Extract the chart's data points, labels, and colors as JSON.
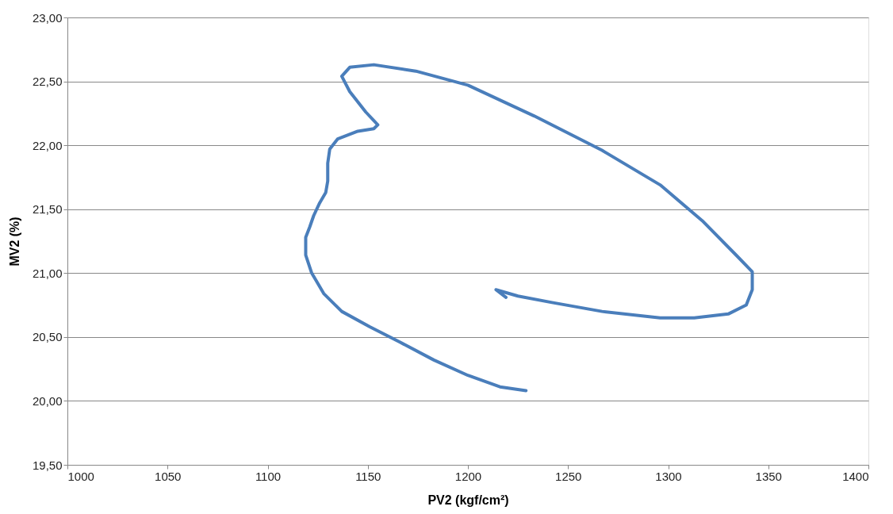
{
  "chart_data": {
    "type": "line",
    "xlabel": "PV2 (kgf/cm²)",
    "ylabel": "MV2 (%)",
    "x": [
      1229,
      1216,
      1200,
      1183,
      1166,
      1151,
      1137,
      1128,
      1122,
      1119,
      1119,
      1121,
      1123,
      1126,
      1129,
      1130,
      1130,
      1131,
      1135,
      1145,
      1153,
      1155,
      1149,
      1141,
      1137,
      1141,
      1153,
      1174,
      1200,
      1233,
      1267,
      1296,
      1317,
      1334,
      1342,
      1342,
      1339,
      1330,
      1313,
      1296,
      1267,
      1242,
      1225,
      1214,
      1219
    ],
    "series": [
      {
        "color": "#4a7ebb",
        "values": [
          20.08,
          20.11,
          20.2,
          20.32,
          20.46,
          20.58,
          20.7,
          20.84,
          21.0,
          21.14,
          21.28,
          21.36,
          21.45,
          21.55,
          21.63,
          21.72,
          21.86,
          21.97,
          22.05,
          22.11,
          22.13,
          22.16,
          22.26,
          22.42,
          22.54,
          22.61,
          22.63,
          22.58,
          22.47,
          22.23,
          21.96,
          21.69,
          21.41,
          21.14,
          21.01,
          20.87,
          20.75,
          20.68,
          20.65,
          20.65,
          20.7,
          20.77,
          20.82,
          20.87,
          20.81
        ]
      }
    ],
    "xlim": [
      1000,
      1400
    ],
    "xticks": [
      1000,
      1050,
      1100,
      1150,
      1200,
      1250,
      1300,
      1350,
      1400
    ],
    "ylim": [
      19.5,
      23.0
    ],
    "yticks": [
      {
        "value": 19.5,
        "label": "19,50"
      },
      {
        "value": 20.0,
        "label": "20,00"
      },
      {
        "value": 20.5,
        "label": "20,50"
      },
      {
        "value": 21.0,
        "label": "21,00"
      },
      {
        "value": 21.5,
        "label": "21,50"
      },
      {
        "value": 22.0,
        "label": "22,00"
      },
      {
        "value": 22.5,
        "label": "22,50"
      },
      {
        "value": 23.0,
        "label": "23,00"
      }
    ],
    "grid": "y",
    "marker": "none",
    "line_style": "solid"
  }
}
